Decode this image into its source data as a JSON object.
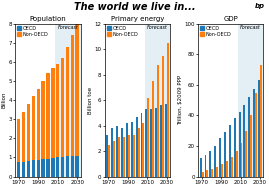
{
  "title": "The world we live in...",
  "annotations": [
    "bp"
  ],
  "chart_data": [
    {
      "type": "bar",
      "title": "Population",
      "y_label": "Billion",
      "x": [
        1970,
        1975,
        1980,
        1985,
        1990,
        1995,
        2000,
        2005,
        2010,
        2015,
        2020,
        2025,
        2030
      ],
      "xlim": [
        1966.5,
        2033.5
      ],
      "xticks": [
        1970,
        1990,
        2010,
        2030
      ],
      "ylim": [
        0,
        8
      ],
      "yticks": [
        0,
        1,
        2,
        3,
        4,
        5,
        6,
        7,
        8
      ],
      "stacked": true,
      "legend": "upper left",
      "forecast_from": 2010,
      "annotations": [
        "Forecast"
      ],
      "series": [
        {
          "name": "OECD",
          "values": [
            0.75,
            0.78,
            0.82,
            0.85,
            0.88,
            0.9,
            0.93,
            0.96,
            1.0,
            1.03,
            1.05,
            1.07,
            1.1
          ]
        },
        {
          "name": "Non-OECD",
          "values": [
            2.25,
            2.62,
            2.98,
            3.35,
            3.72,
            4.1,
            4.47,
            4.74,
            4.9,
            5.17,
            5.75,
            6.33,
            6.9
          ]
        }
      ]
    },
    {
      "type": "bar",
      "title": "Primary energy",
      "y_label": "Billion toe",
      "x": [
        1970,
        1975,
        1980,
        1985,
        1990,
        1995,
        2000,
        2005,
        2010,
        2015,
        2020,
        2025,
        2030
      ],
      "xlim": [
        1966.5,
        2033.5
      ],
      "xticks": [
        1970,
        1990,
        2010,
        2030
      ],
      "ylim": [
        0,
        12
      ],
      "yticks": [
        0,
        2,
        4,
        6,
        8,
        10,
        12
      ],
      "stacked": false,
      "legend": "upper left",
      "forecast_from": 2010,
      "annotations": [
        "Forecast"
      ],
      "series": [
        {
          "name": "OECD",
          "values": [
            3.3,
            3.8,
            4.0,
            3.8,
            4.2,
            4.3,
            4.7,
            5.0,
            5.3,
            5.3,
            5.4,
            5.6,
            5.7
          ]
        },
        {
          "name": "Non-OECD",
          "values": [
            2.5,
            2.8,
            3.1,
            3.1,
            3.3,
            3.3,
            3.8,
            4.2,
            6.2,
            7.5,
            8.8,
            9.5,
            10.5
          ]
        }
      ]
    },
    {
      "type": "bar",
      "title": "GDP",
      "y_label": "Trillion, $2009 PPP",
      "x": [
        1970,
        1975,
        1980,
        1985,
        1990,
        1995,
        2000,
        2005,
        2010,
        2015,
        2020,
        2025,
        2030
      ],
      "xlim": [
        1966.5,
        2033.5
      ],
      "xticks": [
        1970,
        1990,
        2010,
        2030
      ],
      "ylim": [
        0,
        100
      ],
      "yticks": [
        0,
        20,
        40,
        60,
        80,
        100
      ],
      "stacked": false,
      "legend": "upper left",
      "forecast_from": 2010,
      "annotations": [
        "Forecast"
      ],
      "series": [
        {
          "name": "OECD",
          "values": [
            12,
            14,
            17,
            20,
            25,
            29,
            34,
            38,
            42,
            47,
            52,
            57,
            63
          ]
        },
        {
          "name": "Non-OECD",
          "values": [
            3,
            4,
            5,
            6,
            8,
            10,
            13,
            17,
            22,
            30,
            40,
            55,
            73
          ]
        }
      ]
    }
  ]
}
